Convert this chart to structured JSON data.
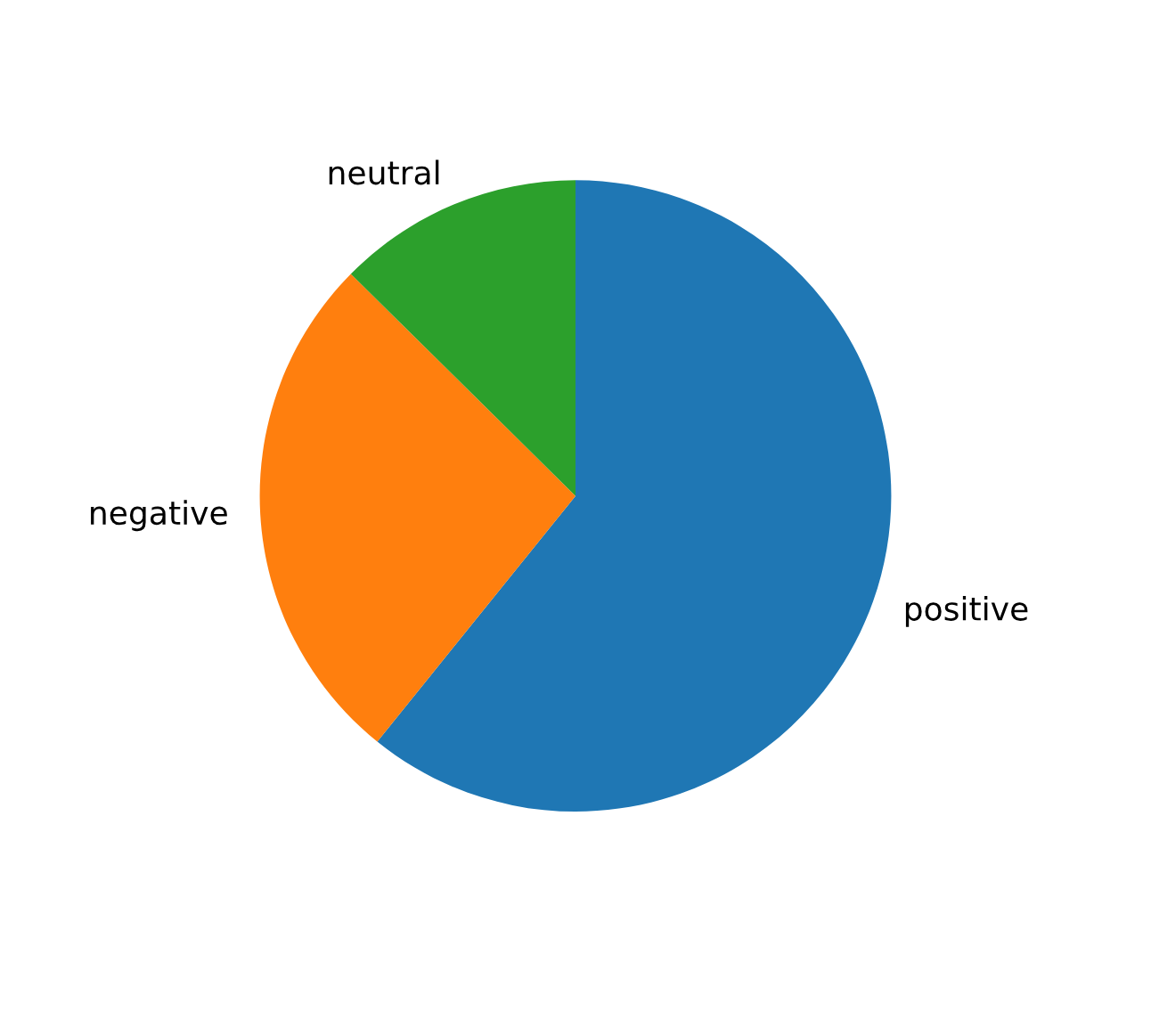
{
  "chart_data": {
    "type": "pie",
    "categories": [
      "positive",
      "negative",
      "neutral"
    ],
    "values": [
      60.8,
      26.6,
      12.6
    ],
    "colors": [
      "#1f77b4",
      "#ff7f0e",
      "#2ca02c"
    ]
  }
}
